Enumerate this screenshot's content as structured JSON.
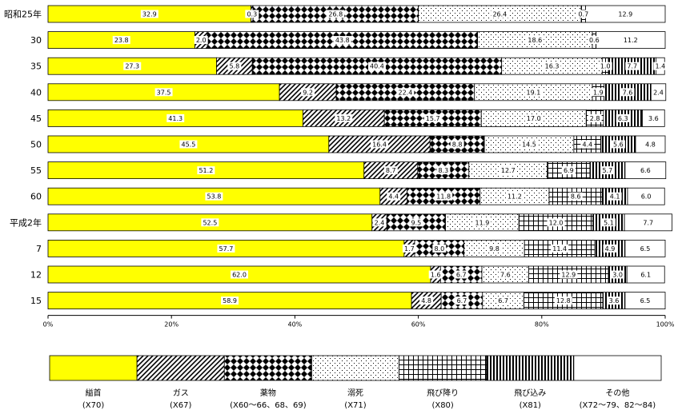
{
  "chart_data": {
    "type": "bar",
    "orientation": "horizontal",
    "stacked": "percent",
    "categories": [
      "昭和25年",
      "30",
      "35",
      "40",
      "45",
      "50",
      "55",
      "60",
      "平成2年",
      "7",
      "12",
      "15"
    ],
    "series": [
      {
        "name": "縊首",
        "code": "(X70)",
        "pattern": "solid-yellow",
        "color": "#ffff00",
        "values": [
          32.9,
          23.8,
          27.3,
          37.5,
          41.3,
          45.5,
          51.2,
          53.8,
          52.5,
          57.7,
          62.0,
          58.9
        ]
      },
      {
        "name": "ガス",
        "code": "(X67)",
        "pattern": "diagonal-stripes",
        "values": [
          0.3,
          2.0,
          5.8,
          9.2,
          13.2,
          16.4,
          8.7,
          4.4,
          2.4,
          1.7,
          1.6,
          4.8
        ]
      },
      {
        "name": "薬物",
        "code": "(X60～66、68、69)",
        "pattern": "diamond-check",
        "values": [
          26.8,
          43.8,
          40.4,
          22.4,
          15.7,
          8.8,
          8.3,
          11.8,
          9.5,
          8.0,
          6.7,
          6.7
        ]
      },
      {
        "name": "溺死",
        "code": "(X71)",
        "pattern": "dots",
        "values": [
          26.4,
          18.6,
          16.3,
          19.1,
          17.0,
          14.5,
          12.7,
          11.2,
          11.9,
          9.8,
          7.6,
          6.7
        ]
      },
      {
        "name": "飛び降り",
        "code": "(X80)",
        "pattern": "grid",
        "values": [
          0.7,
          0.6,
          1.0,
          1.9,
          2.8,
          4.4,
          6.9,
          8.6,
          12.0,
          11.4,
          12.9,
          12.8
        ]
      },
      {
        "name": "飛び込み",
        "code": "(X81)",
        "pattern": "vertical-stripes",
        "values": [
          0.0,
          0.0,
          7.7,
          7.6,
          6.3,
          5.6,
          5.7,
          4.1,
          5.1,
          4.9,
          3.0,
          3.6
        ]
      },
      {
        "name": "その他",
        "code": "(X72～79、82～84)",
        "pattern": "white",
        "values": [
          12.9,
          11.2,
          1.4,
          2.4,
          3.6,
          4.8,
          6.6,
          6.0,
          7.7,
          6.5,
          6.1,
          6.5
        ]
      }
    ],
    "x_ticks": [
      "0%",
      "20%",
      "40%",
      "60%",
      "80%",
      "100%"
    ],
    "xlim": [
      0,
      100
    ],
    "legend_position": "bottom"
  }
}
